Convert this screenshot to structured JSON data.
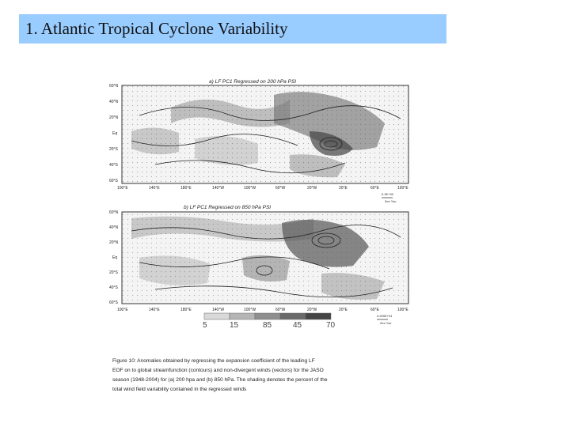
{
  "slide": {
    "title": "1. Atlantic Tropical Cyclone Variability"
  },
  "figure": {
    "panel_a": {
      "title": "a) LF PC1 Regressed on 200 hPa PSI",
      "lat_labels": [
        "60°N",
        "40°N",
        "20°N",
        "Eq",
        "20°S",
        "40°S",
        "60°S"
      ],
      "lon_labels": [
        "100°E",
        "140°E",
        "180°E",
        "140°W",
        "100°W",
        "60°W",
        "20°W",
        "20°E",
        "60°E",
        "100°E"
      ],
      "vector_ref_value": "0.2E+02",
      "vector_ref_unit": "2m/ Ysc"
    },
    "panel_b": {
      "title": "b) LF PC1 Regressed on 850 hPa PSI",
      "lat_labels": [
        "60°N",
        "40°N",
        "20°N",
        "Eq",
        "20°S",
        "40°S",
        "60°S"
      ],
      "lon_labels": [
        "100°E",
        "140°E",
        "180°E",
        "140°W",
        "100°W",
        "60°W",
        "20°W",
        "20°E",
        "60°E",
        "100°E"
      ],
      "vector_ref_value": "0.200E+01",
      "vector_ref_unit": "2m/ Ysc"
    },
    "shading_scale": [
      "5",
      "15",
      "85",
      "45",
      "70"
    ],
    "caption": [
      "Figure 10:  Anomalies obtained by regressing the expansion coefficient of the leading LF",
      "EOF on to global streamfunction (contours) and non-divergent winds (vectors) for the JASO",
      "season (1948-2004) for (a) 200 hpa and (b) 850 hPa.  The shading denotes the percent of the",
      "total wind field variability contained in the regressed winds"
    ]
  }
}
